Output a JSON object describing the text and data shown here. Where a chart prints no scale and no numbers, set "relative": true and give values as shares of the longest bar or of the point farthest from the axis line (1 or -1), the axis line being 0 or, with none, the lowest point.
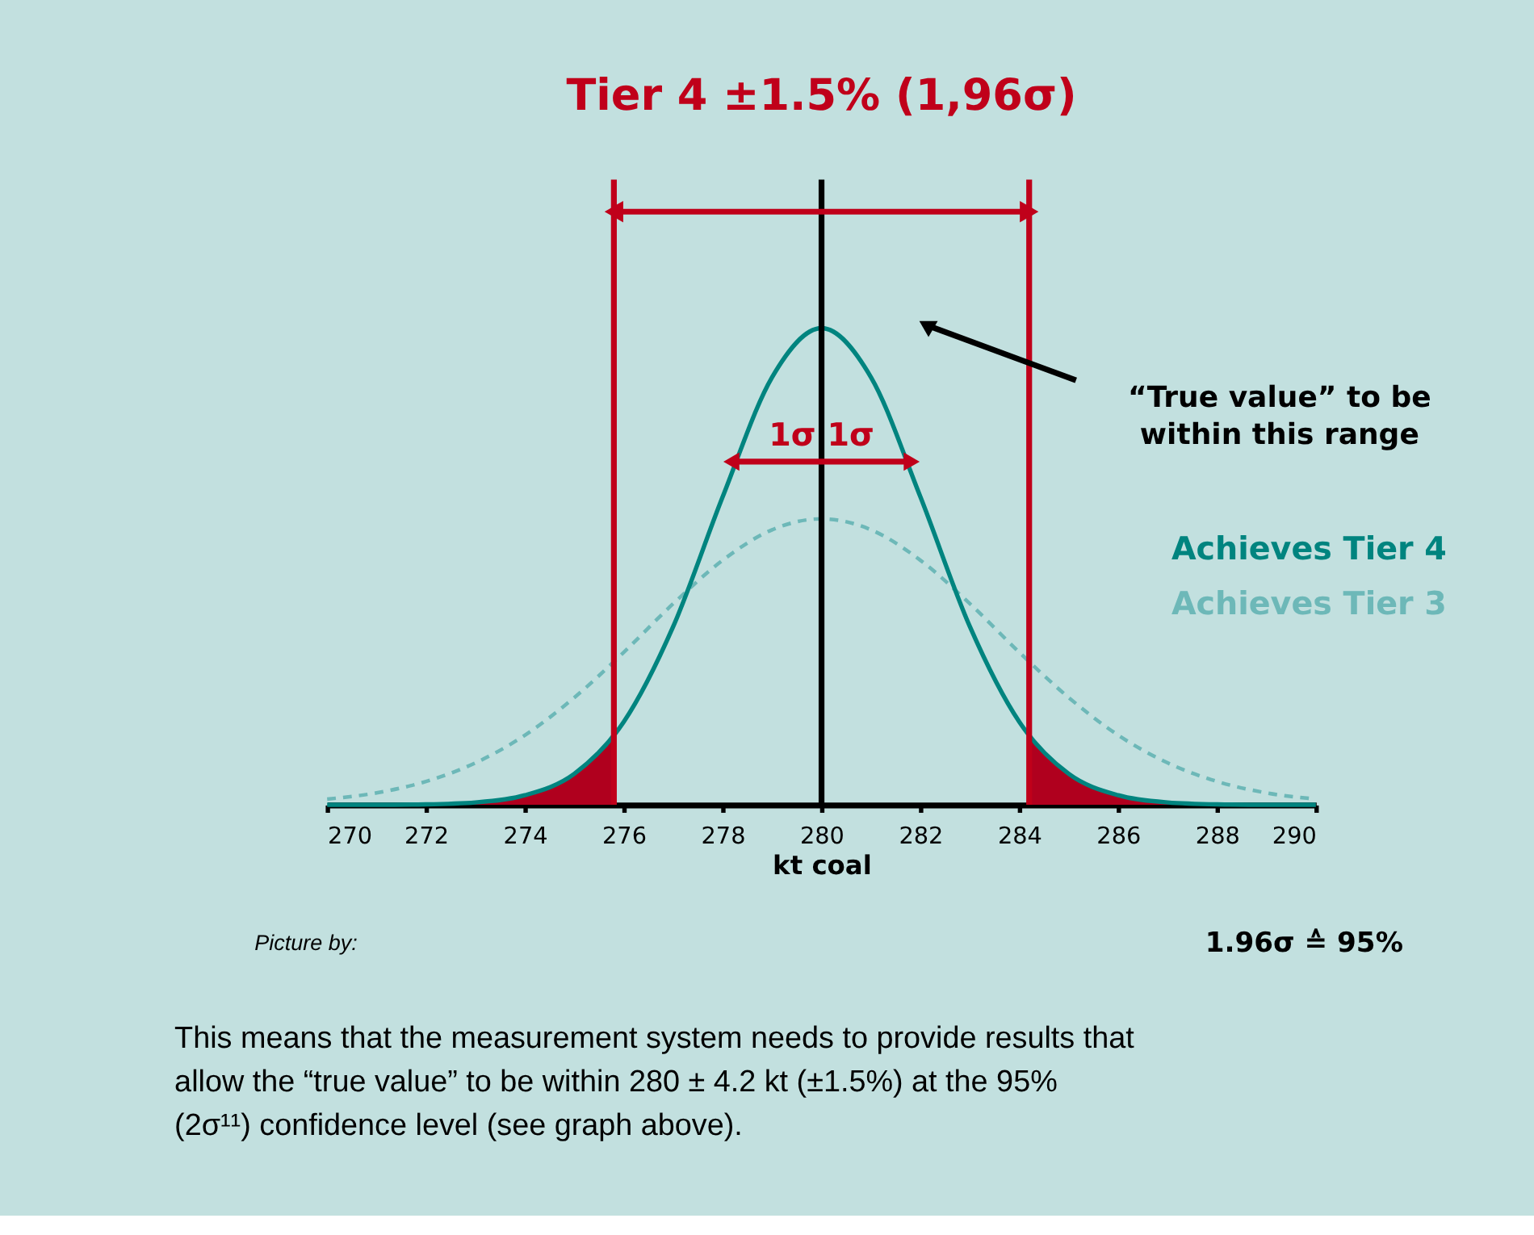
{
  "chart_data": {
    "type": "line",
    "title": "Tier 4 ±1.5% (1,96σ)",
    "xlabel": "kt coal",
    "relative": true,
    "xlim": [
      270,
      290
    ],
    "xticks": [
      270,
      272,
      274,
      276,
      278,
      280,
      282,
      284,
      286,
      288,
      290
    ],
    "grid": false,
    "legend": false,
    "series": [
      {
        "name": "Achieves Tier 3",
        "color": "#6db8b8",
        "line_style": "dashed",
        "x": [
          270,
          271,
          272,
          273,
          274,
          275,
          276,
          277,
          278,
          279,
          280,
          281,
          282,
          283,
          284,
          285,
          286,
          287,
          288,
          289,
          290
        ],
        "values": [
          0.012,
          0.025,
          0.049,
          0.088,
          0.146,
          0.225,
          0.32,
          0.422,
          0.513,
          0.577,
          0.6,
          0.577,
          0.513,
          0.422,
          0.32,
          0.225,
          0.146,
          0.088,
          0.049,
          0.025,
          0.012
        ]
      },
      {
        "type": "area",
        "color": "#b0001e",
        "x": [
          270,
          271,
          272,
          273,
          274,
          275,
          275.8
        ],
        "values": [
          0,
          0,
          0.001,
          0.005,
          0.02,
          0.065,
          0.146
        ]
      },
      {
        "type": "area",
        "color": "#b0001e",
        "x": [
          284.2,
          285,
          286,
          287,
          288,
          289,
          290
        ],
        "values": [
          0.146,
          0.065,
          0.02,
          0.005,
          0.001,
          0,
          0
        ]
      },
      {
        "name": "Achieves Tier 4",
        "color": "#00847f",
        "line_style": "solid",
        "x": [
          270,
          271,
          272,
          273,
          274,
          275,
          276,
          277,
          278,
          279,
          280,
          281,
          282,
          283,
          284,
          285,
          286,
          287,
          288,
          289,
          290
        ],
        "values": [
          0,
          0,
          0.001,
          0.005,
          0.02,
          0.065,
          0.174,
          0.374,
          0.646,
          0.897,
          1,
          0.897,
          0.646,
          0.374,
          0.174,
          0.065,
          0.02,
          0.005,
          0.001,
          0,
          0
        ]
      }
    ],
    "ref_lines": [
      {
        "axis": "x",
        "value": 275.8,
        "color": "#c0001a"
      },
      {
        "axis": "x",
        "value": 280,
        "color": "#000000"
      },
      {
        "axis": "x",
        "value": 284.2,
        "color": "#c0001a"
      }
    ],
    "annotations": [
      {
        "text": "1σ 1σ",
        "x": 280,
        "y": 0.72
      },
      "“True value” to be within this range",
      "1.96σ ≙ 95%",
      "Picture by:",
      "This means that the measurement system needs to provide results that allow the “true value” to be within 280 ± 4.2 kt (±1.5%) at the 95% (2σ¹¹) confidence level (see graph above)."
    ]
  }
}
